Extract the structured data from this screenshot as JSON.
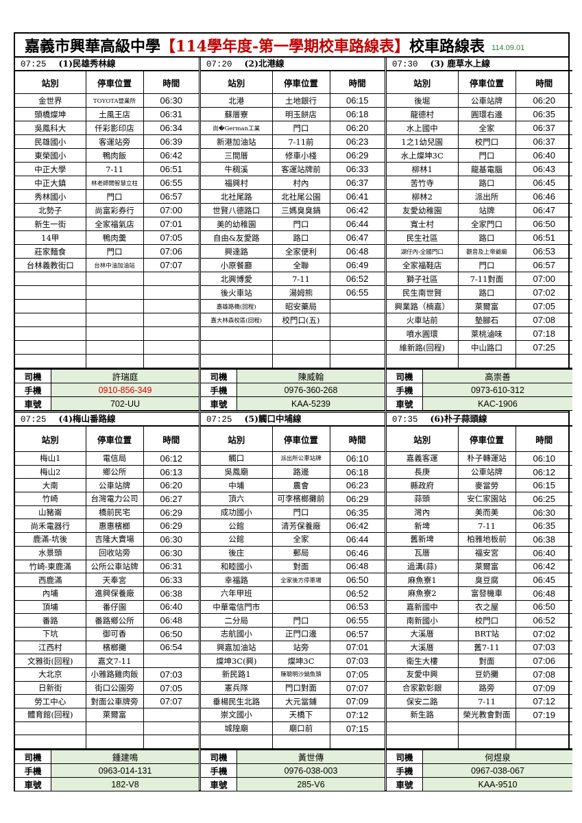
{
  "title": {
    "school": "嘉義市興華高級中學",
    "highlight": "【114學年度-第一學期校車路線表】",
    "suffix": "校車路線表",
    "date": "114.09.01",
    "highlight_color": "#c00000"
  },
  "columns": {
    "station": "站別",
    "stop": "停車位置",
    "time": "時間"
  },
  "driver_labels": {
    "driver": "司機",
    "phone": "手機",
    "plate": "車號"
  },
  "routes": [
    {
      "depart": "07:25",
      "name": "(1)民雄秀林線",
      "rows": [
        [
          "金世界",
          "TOYOTA營業所",
          "06:30"
        ],
        [
          "頭橋燦坤",
          "土風王店",
          "06:31"
        ],
        [
          "吳鳳科大",
          "仟彩影印店",
          "06:34"
        ],
        [
          "民雄國小",
          "客運站旁",
          "06:39"
        ],
        [
          "東榮國小",
          "鴨肉飯",
          "06:42"
        ],
        [
          "中正大學",
          "7-11",
          "06:51"
        ],
        [
          "中正大鎮",
          "林老師開智慧立柱",
          "06:55"
        ],
        [
          "秀林國小",
          "門口",
          "06:57"
        ],
        [
          "北勢子",
          "尚富彩券行",
          "07:00"
        ],
        [
          "新生一街",
          "全家福氣店",
          "07:01"
        ],
        [
          "14甲",
          "鴨肉羹",
          "07:05"
        ],
        [
          "莊家麵食",
          "門口",
          "07:06"
        ],
        [
          "台林義教街口",
          "台林中油加油站",
          "07:07"
        ]
      ],
      "driver": "許瑞庭",
      "phone": "0910-856-349",
      "plate": "702-UU",
      "phone_color": "#e00000"
    },
    {
      "depart": "07:20",
      "name": "(2)北港線",
      "rows": [
        [
          "北港",
          "土地銀行",
          "06:15"
        ],
        [
          "蘇厝寮",
          "明玉餅店",
          "06:18"
        ],
        [
          "尚�German工業",
          "門口",
          "06:20"
        ],
        [
          "新港加油站",
          "7-11前",
          "06:23"
        ],
        [
          "三間厝",
          "修車小棧",
          "06:29"
        ],
        [
          "牛稠溪",
          "客運站牌前",
          "06:33"
        ],
        [
          "福興村",
          "村內",
          "06:37"
        ],
        [
          "北社尾路",
          "北社尾公園",
          "06:41"
        ],
        [
          "世賢八德路口",
          "三媽臭臭鍋",
          "06:42"
        ],
        [
          "美的幼稚園",
          "門口",
          "06:44"
        ],
        [
          "自由&友愛路",
          "路口",
          "06:47"
        ],
        [
          "興達路",
          "全家便利",
          "06:48"
        ],
        [
          "小原餐廳",
          "全聯",
          "06:49"
        ],
        [
          "北興博愛",
          "7-11",
          "06:52"
        ],
        [
          "後火車站",
          "湯姆熊",
          "06:55"
        ],
        [
          "嘉雄路橋(回程)",
          "昭安藥局",
          ""
        ],
        [
          "嘉大林森校區(回程)",
          "校門口(五)",
          ""
        ]
      ],
      "driver": "陳威翰",
      "phone": "0976-360-268",
      "plate": "KAA-5239"
    },
    {
      "depart": "07:30",
      "name": "(3) 鹿草水上線",
      "rows": [
        [
          "後堀",
          "公車站牌",
          "06:20"
        ],
        [
          "龍德村",
          "圓環右邊",
          "06:35"
        ],
        [
          "水上國中",
          "全家",
          "06:37"
        ],
        [
          "1之1幼兒園",
          "校門口",
          "06:37"
        ],
        [
          "水上燦坤3C",
          "門口",
          "06:40"
        ],
        [
          "柳林1",
          "龍基電腦",
          "06:43"
        ],
        [
          "苦竹寺",
          "路口",
          "06:45"
        ],
        [
          "柳林2",
          "派出所",
          "06:46"
        ],
        [
          "友愛幼稚園",
          "站牌",
          "06:47"
        ],
        [
          "寬士村",
          "全家門口",
          "06:50"
        ],
        [
          "民生社區",
          "路口",
          "06:51"
        ],
        [
          "湖仔內-全國門口",
          "觀音及上帝爺廟",
          "06:53"
        ],
        [
          "全家福鞋店",
          "門口",
          "06:57"
        ],
        [
          "獅子社區",
          "7-11對面",
          "07:00"
        ],
        [
          "民生南世賢",
          "路口",
          "07:02"
        ],
        [
          "興業路（楠嘉）",
          "萊爾富",
          "07:05"
        ],
        [
          "火車站前",
          "墊腳石",
          "07:08"
        ],
        [
          "噴水圓環",
          "萊桃滷味",
          "07:18"
        ],
        [
          "維新路(回程)",
          "中山路口",
          "07:25"
        ]
      ],
      "driver": "高崇善",
      "phone": "0973-610-312",
      "plate": "KAC-1906"
    },
    {
      "depart": "07:25",
      "name": "(4)梅山番路線",
      "rows": [
        [
          "梅山1",
          "電信局",
          "06:12"
        ],
        [
          "梅山2",
          "鄉公所",
          "06:13"
        ],
        [
          "大南",
          "公車站牌",
          "06:20"
        ],
        [
          "竹崎",
          "台灣電力公司",
          "06:27"
        ],
        [
          "山豬崙",
          "橋前民宅",
          "06:29"
        ],
        [
          "尚禾電器行",
          "惠惠檳榔",
          "06:29"
        ],
        [
          "鹿滿-坑後",
          "吉隆大賣場",
          "06:30"
        ],
        [
          "水景頭",
          "回收站旁",
          "06:30"
        ],
        [
          "竹崎-東鹿滿",
          "公所公車站牌",
          "06:31"
        ],
        [
          "西鹿滿",
          "天奉宮",
          "06:33"
        ],
        [
          "內埔",
          "進興保養廠",
          "06:38"
        ],
        [
          "頂埔",
          "番仔園",
          "06:40"
        ],
        [
          "番路",
          "番路鄉公所",
          "06:48"
        ],
        [
          "下坑",
          "御可香",
          "06:50"
        ],
        [
          "江西村",
          "檳榔攤",
          "06:54"
        ],
        [
          "文雅街(回程)",
          "嘉文7-11",
          ""
        ],
        [
          "大北京",
          "小雅路雞肉飯",
          "07:03"
        ],
        [
          "日新街",
          "街口公園旁",
          "07:05"
        ],
        [
          "勞工中心",
          "對面公車牌旁",
          "07:07"
        ],
        [
          "體育館(回程)",
          "萊爾富",
          ""
        ]
      ],
      "driver": "鍾建鳴",
      "phone": "0963-014-131",
      "plate": "182-V8"
    },
    {
      "depart": "07:25",
      "name": "(5)觸口中埔線",
      "rows": [
        [
          "觸口",
          "派出所公車站牌",
          "06:10"
        ],
        [
          "吳鳳廟",
          "路邊",
          "06:18"
        ],
        [
          "中埔",
          "農會",
          "06:23"
        ],
        [
          "頂六",
          "可李檳榔攤前",
          "06:29"
        ],
        [
          "成功國小",
          "門口",
          "06:35"
        ],
        [
          "公館",
          "清芳保養廠",
          "06:42"
        ],
        [
          "公館",
          "全家",
          "06:44"
        ],
        [
          "後庄",
          "郵局",
          "06:46"
        ],
        [
          "和睦國小",
          "對面",
          "06:48"
        ],
        [
          "幸福路",
          "全家後方停車場",
          "06:50"
        ],
        [
          "六年甲班",
          "",
          "06:52"
        ],
        [
          "中華電信門市",
          "",
          "06:53"
        ],
        [
          "二分局",
          "門口",
          "06:55"
        ],
        [
          "志航國小",
          "正門口邊",
          "06:57"
        ],
        [
          "興嘉加油站",
          "站旁",
          "07:01"
        ],
        [
          "燦坤3C(興)",
          "燦坤3C",
          "07:03"
        ],
        [
          "新民路1",
          "陳聰明沙鍋魚頭",
          "07:05"
        ],
        [
          "憲兵隊",
          "門口對面",
          "07:07"
        ],
        [
          "垂楊民生北路",
          "大元當鋪",
          "07:09"
        ],
        [
          "崇文國小",
          "天橋下",
          "07:12"
        ],
        [
          "城隍廟",
          "廟口前",
          "07:15"
        ]
      ],
      "driver": "黃世傳",
      "phone": "0976-038-003",
      "plate": "285-V6"
    },
    {
      "depart": "07:35",
      "name": "(6)朴子蒜頭線",
      "rows": [
        [
          "嘉義客運",
          "朴子轉運站",
          "06:10"
        ],
        [
          "長庚",
          "公車站牌",
          "06:12"
        ],
        [
          "縣政府",
          "麥當勞",
          "06:15"
        ],
        [
          "蒜頭",
          "安仁家園站",
          "06:25"
        ],
        [
          "灣內",
          "美而美",
          "06:30"
        ],
        [
          "新埤",
          "7-11",
          "06:35"
        ],
        [
          "舊新埤",
          "柏雅地板前",
          "06:38"
        ],
        [
          "瓦厝",
          "福安宮",
          "06:40"
        ],
        [
          "過溝(蒜)",
          "萊爾富",
          "06:42"
        ],
        [
          "麻魚寮1",
          "臭豆腐",
          "06:45"
        ],
        [
          "麻魚寮2",
          "富發機車",
          "06:48"
        ],
        [
          "嘉新國中",
          "衣之屋",
          "06:50"
        ],
        [
          "南新國小",
          "校門口",
          "06:52"
        ],
        [
          "大溪厝",
          "BRT站",
          "07:02"
        ],
        [
          "大溪厝",
          "舊7-11",
          "07:03"
        ],
        [
          "衛生大樓",
          "對面",
          "07:06"
        ],
        [
          "友愛中興",
          "豆奶攤",
          "07:08"
        ],
        [
          "合家歡彰銀",
          "路旁",
          "07:09"
        ],
        [
          "保安二路",
          "7-11",
          "07:12"
        ],
        [
          "新生路",
          "榮光教會對面",
          "07:19"
        ]
      ],
      "driver": "何煜泉",
      "phone": "0967-038-067",
      "plate": "KAA-9510"
    }
  ]
}
